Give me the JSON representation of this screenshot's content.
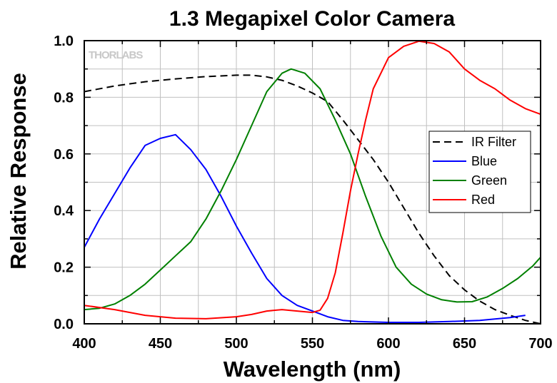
{
  "chart_data": {
    "type": "line",
    "title": "1.3 Megapixel Color Camera",
    "xlabel": "Wavelength (nm)",
    "ylabel": "Relative Response",
    "xlim": [
      400,
      700
    ],
    "ylim": [
      0,
      1.0
    ],
    "x_ticks": [
      "400",
      "450",
      "500",
      "550",
      "600",
      "650",
      "700"
    ],
    "y_ticks": [
      "0.0",
      "0.2",
      "0.4",
      "0.6",
      "0.8",
      "1.0"
    ],
    "grid": true,
    "legend_position": "right",
    "watermark": "THORLABS",
    "series": [
      {
        "name": "IR Filter",
        "color": "#000000",
        "style": "dashed",
        "points": [
          [
            400,
            0.82
          ],
          [
            420,
            0.84
          ],
          [
            440,
            0.855
          ],
          [
            460,
            0.865
          ],
          [
            480,
            0.873
          ],
          [
            500,
            0.878
          ],
          [
            510,
            0.878
          ],
          [
            520,
            0.872
          ],
          [
            530,
            0.86
          ],
          [
            540,
            0.84
          ],
          [
            550,
            0.815
          ],
          [
            560,
            0.785
          ],
          [
            570,
            0.72
          ],
          [
            580,
            0.65
          ],
          [
            590,
            0.58
          ],
          [
            600,
            0.5
          ],
          [
            610,
            0.41
          ],
          [
            620,
            0.32
          ],
          [
            630,
            0.24
          ],
          [
            640,
            0.17
          ],
          [
            650,
            0.12
          ],
          [
            660,
            0.08
          ],
          [
            670,
            0.05
          ],
          [
            680,
            0.03
          ],
          [
            690,
            0.012
          ],
          [
            700,
            0.0
          ]
        ]
      },
      {
        "name": "Blue",
        "color": "#0000ff",
        "style": "solid",
        "points": [
          [
            400,
            0.27
          ],
          [
            410,
            0.37
          ],
          [
            420,
            0.46
          ],
          [
            430,
            0.55
          ],
          [
            440,
            0.63
          ],
          [
            450,
            0.655
          ],
          [
            460,
            0.668
          ],
          [
            470,
            0.615
          ],
          [
            480,
            0.545
          ],
          [
            490,
            0.45
          ],
          [
            500,
            0.345
          ],
          [
            510,
            0.25
          ],
          [
            520,
            0.16
          ],
          [
            530,
            0.1
          ],
          [
            540,
            0.065
          ],
          [
            550,
            0.045
          ],
          [
            560,
            0.025
          ],
          [
            570,
            0.012
          ],
          [
            580,
            0.008
          ],
          [
            600,
            0.005
          ],
          [
            620,
            0.005
          ],
          [
            640,
            0.008
          ],
          [
            660,
            0.012
          ],
          [
            680,
            0.022
          ],
          [
            690,
            0.03
          ]
        ]
      },
      {
        "name": "Green",
        "color": "#008000",
        "style": "solid",
        "points": [
          [
            400,
            0.05
          ],
          [
            410,
            0.055
          ],
          [
            420,
            0.07
          ],
          [
            430,
            0.1
          ],
          [
            440,
            0.14
          ],
          [
            450,
            0.19
          ],
          [
            460,
            0.24
          ],
          [
            470,
            0.29
          ],
          [
            480,
            0.37
          ],
          [
            490,
            0.47
          ],
          [
            500,
            0.58
          ],
          [
            510,
            0.7
          ],
          [
            520,
            0.82
          ],
          [
            530,
            0.885
          ],
          [
            536,
            0.9
          ],
          [
            545,
            0.885
          ],
          [
            555,
            0.83
          ],
          [
            565,
            0.72
          ],
          [
            575,
            0.6
          ],
          [
            585,
            0.45
          ],
          [
            595,
            0.31
          ],
          [
            605,
            0.2
          ],
          [
            615,
            0.14
          ],
          [
            625,
            0.105
          ],
          [
            635,
            0.085
          ],
          [
            645,
            0.077
          ],
          [
            655,
            0.078
          ],
          [
            665,
            0.095
          ],
          [
            675,
            0.125
          ],
          [
            685,
            0.16
          ],
          [
            695,
            0.205
          ],
          [
            700,
            0.235
          ]
        ]
      },
      {
        "name": "Red",
        "color": "#ff0000",
        "style": "solid",
        "points": [
          [
            400,
            0.065
          ],
          [
            420,
            0.05
          ],
          [
            440,
            0.03
          ],
          [
            460,
            0.02
          ],
          [
            480,
            0.018
          ],
          [
            500,
            0.025
          ],
          [
            510,
            0.033
          ],
          [
            520,
            0.045
          ],
          [
            530,
            0.05
          ],
          [
            540,
            0.045
          ],
          [
            550,
            0.04
          ],
          [
            555,
            0.048
          ],
          [
            560,
            0.09
          ],
          [
            565,
            0.18
          ],
          [
            570,
            0.32
          ],
          [
            575,
            0.47
          ],
          [
            580,
            0.6
          ],
          [
            585,
            0.72
          ],
          [
            590,
            0.83
          ],
          [
            600,
            0.94
          ],
          [
            610,
            0.98
          ],
          [
            620,
            0.998
          ],
          [
            630,
            0.99
          ],
          [
            640,
            0.96
          ],
          [
            650,
            0.9
          ],
          [
            660,
            0.86
          ],
          [
            670,
            0.83
          ],
          [
            680,
            0.79
          ],
          [
            690,
            0.76
          ],
          [
            700,
            0.74
          ]
        ]
      }
    ]
  }
}
